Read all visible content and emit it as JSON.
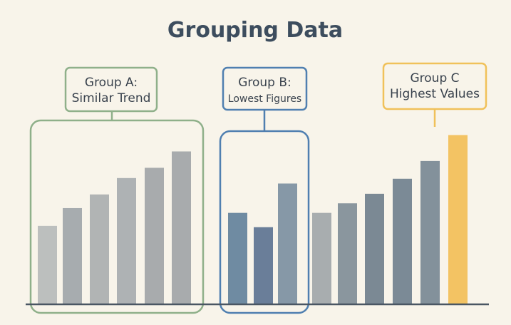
{
  "chart_data": {
    "type": "bar",
    "title": "Grouping Data",
    "xlabel": "",
    "ylabel": "",
    "ylim": [
      0,
      260
    ],
    "grid": false,
    "legend": "none",
    "values": [
      115,
      141,
      161,
      185,
      200,
      224,
      134,
      113,
      177,
      134,
      148,
      162,
      184,
      210,
      248
    ],
    "bar_colors": [
      "#bcbfbe",
      "#a7acaf",
      "#b1b4b4",
      "#aeb2b4",
      "#a8abad",
      "#a8abad",
      "#6f8ba2",
      "#6a7e99",
      "#8698a7",
      "#a8adaf",
      "#8a969e",
      "#7b8994",
      "#7b8a96",
      "#83919b",
      "#f3c363"
    ],
    "groups": [
      {
        "name": "Group A",
        "label_lines": [
          "Group A:",
          "Similar Trend"
        ],
        "bar_indices": [
          0,
          1,
          2,
          3,
          4,
          5
        ],
        "color": "#8fb08a"
      },
      {
        "name": "Group B",
        "label_lines": [
          "Group B:",
          "Lowest Figures"
        ],
        "bar_indices": [
          6,
          7,
          8
        ],
        "color": "#4f7fb0"
      },
      {
        "name": "Group C",
        "label_lines": [
          "Group C",
          "Highest Values"
        ],
        "bar_indices": [
          14
        ],
        "color": "#f0c15a"
      }
    ],
    "colors": {
      "background": "#f8f4ea",
      "baseline": "#4a5663",
      "title": "#3d4d5e",
      "label_text": "#39424d"
    }
  }
}
